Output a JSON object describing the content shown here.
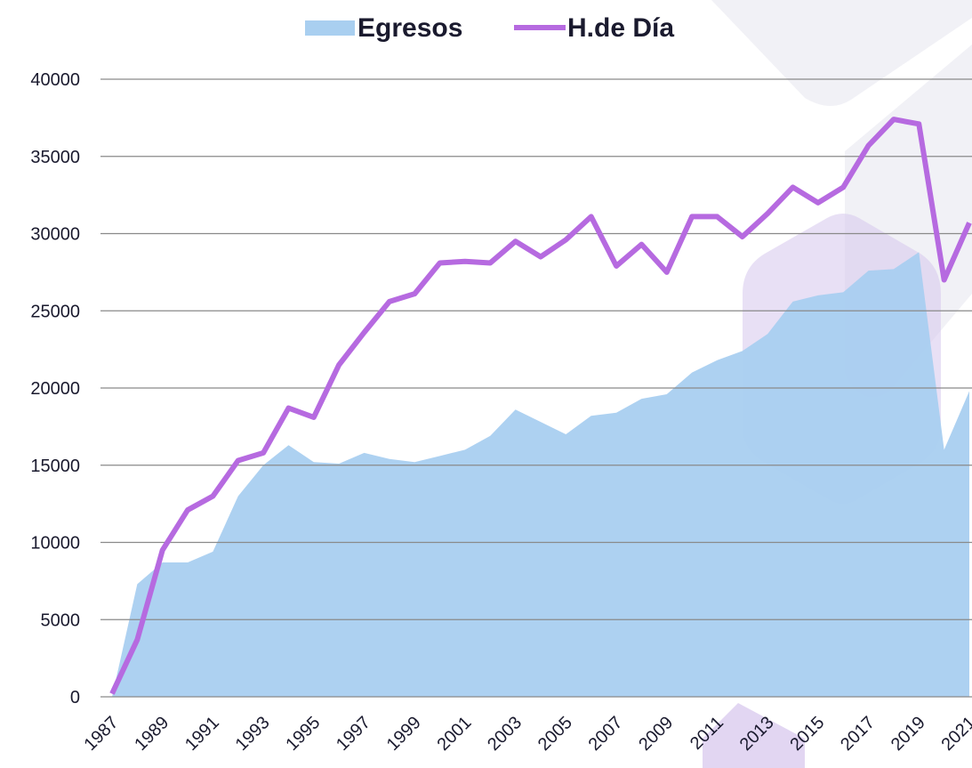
{
  "chart_data": {
    "type": "area_line",
    "categories": [
      "1987",
      null,
      "1989",
      null,
      "1991",
      null,
      "1993",
      null,
      "1995",
      null,
      "1997",
      null,
      "1999",
      null,
      "2001",
      null,
      "2003",
      null,
      "2005",
      null,
      "2007",
      null,
      "2009",
      null,
      "2011",
      null,
      "2013",
      null,
      "2015",
      null,
      "2017",
      null,
      "2019",
      null,
      "2021"
    ],
    "series": [
      {
        "name": "Egresos",
        "color": "#a9cff0",
        "values": [
          0,
          7300,
          8700,
          8700,
          9400,
          13000,
          15000,
          16300,
          15200,
          15100,
          15800,
          15400,
          15200,
          15600,
          16000,
          16900,
          18600,
          17800,
          17000,
          18200,
          18400,
          19300,
          19600,
          21000,
          21800,
          22400,
          23500,
          25600,
          26000,
          26200,
          27600,
          27700,
          28800,
          16000,
          19800
        ]
      },
      {
        "name": "H.de Día",
        "color": "#b66ae0",
        "values": [
          200,
          3700,
          9500,
          12100,
          13000,
          15300,
          15800,
          18700,
          18100,
          21500,
          23600,
          25600,
          26100,
          28100,
          28200,
          28100,
          29500,
          28500,
          29600,
          31100,
          27900,
          29300,
          27500,
          31100,
          31100,
          29800,
          31300,
          33000,
          32000,
          33000,
          35700,
          37400,
          37100,
          27000,
          30700
        ]
      }
    ],
    "ylim": [
      0,
      40000
    ],
    "yticks": [
      0,
      5000,
      10000,
      15000,
      20000,
      25000,
      30000,
      35000,
      40000
    ],
    "grid": true,
    "legend": "top"
  }
}
